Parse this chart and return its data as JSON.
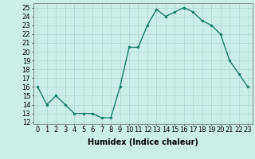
{
  "x": [
    0,
    1,
    2,
    3,
    4,
    5,
    6,
    7,
    8,
    9,
    10,
    11,
    12,
    13,
    14,
    15,
    16,
    17,
    18,
    19,
    20,
    21,
    22,
    23
  ],
  "y": [
    16,
    14,
    15,
    14,
    13,
    13,
    13,
    12.5,
    12.5,
    16,
    20.5,
    20.5,
    23,
    24.8,
    24,
    24.5,
    25,
    24.5,
    23.5,
    23,
    22,
    19,
    17.5,
    16
  ],
  "line_color": "#1a7a6a",
  "marker": "o",
  "marker_size": 2.0,
  "linewidth": 1.0,
  "xlabel": "Humidex (Indice chaleur)",
  "xlim": [
    -0.5,
    23.5
  ],
  "ylim": [
    11.8,
    25.5
  ],
  "yticks": [
    12,
    13,
    14,
    15,
    16,
    17,
    18,
    19,
    20,
    21,
    22,
    23,
    24,
    25
  ],
  "xticks": [
    0,
    1,
    2,
    3,
    4,
    5,
    6,
    7,
    8,
    9,
    10,
    11,
    12,
    13,
    14,
    15,
    16,
    17,
    18,
    19,
    20,
    21,
    22,
    23
  ],
  "background_color": "#cceee8",
  "grid_color": "#aad8d0",
  "xlabel_fontsize": 7,
  "tick_fontsize": 6
}
